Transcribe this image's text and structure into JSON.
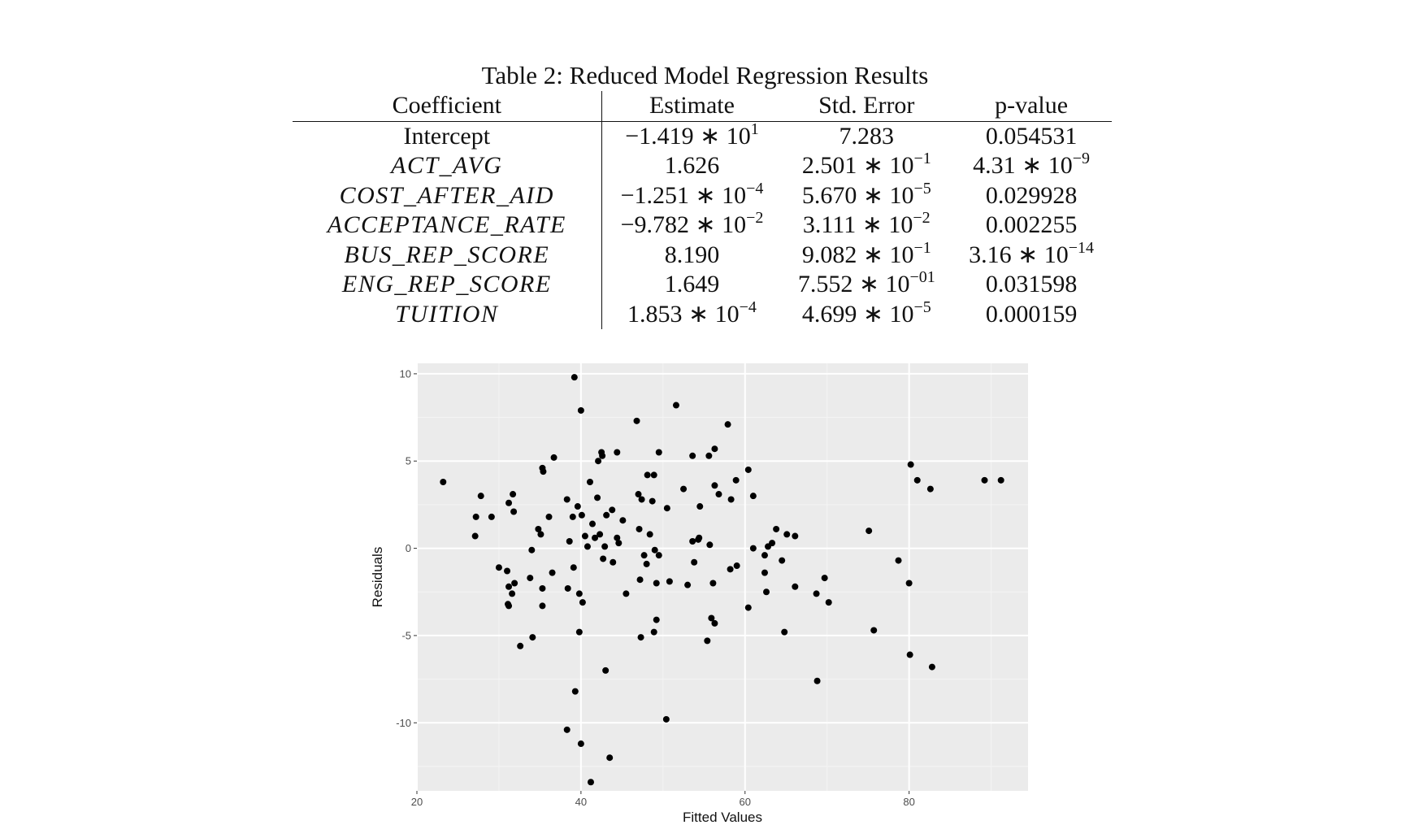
{
  "caption": "Table 2: Reduced Model Regression Results",
  "table": {
    "headers": [
      "Coefficient",
      "Estimate",
      "Std. Error",
      "p-value"
    ],
    "rows": [
      {
        "name": "Intercept",
        "italic": false,
        "estimate": {
          "m": "−1.419 ∗ 10",
          "e": "1"
        },
        "stderr": {
          "m": "7.283",
          "e": ""
        },
        "pvalue": {
          "m": "0.054531",
          "e": ""
        }
      },
      {
        "name": "ACT_AVG",
        "italic": true,
        "estimate": {
          "m": "1.626",
          "e": ""
        },
        "stderr": {
          "m": "2.501 ∗ 10",
          "e": "−1"
        },
        "pvalue": {
          "m": "4.31 ∗ 10",
          "e": "−9"
        }
      },
      {
        "name": "COST_AFTER_AID",
        "italic": true,
        "estimate": {
          "m": "−1.251 ∗ 10",
          "e": "−4"
        },
        "stderr": {
          "m": "5.670 ∗ 10",
          "e": "−5"
        },
        "pvalue": {
          "m": "0.029928",
          "e": ""
        }
      },
      {
        "name": "ACCEPTANCE_RATE",
        "italic": true,
        "estimate": {
          "m": "−9.782 ∗ 10",
          "e": "−2"
        },
        "stderr": {
          "m": "3.111 ∗ 10",
          "e": "−2"
        },
        "pvalue": {
          "m": "0.002255",
          "e": ""
        }
      },
      {
        "name": "BUS_REP_SCORE",
        "italic": true,
        "estimate": {
          "m": "8.190",
          "e": ""
        },
        "stderr": {
          "m": "9.082 ∗ 10",
          "e": "−1"
        },
        "pvalue": {
          "m": "3.16 ∗ 10",
          "e": "−14"
        }
      },
      {
        "name": "ENG_REP_SCORE",
        "italic": true,
        "estimate": {
          "m": "1.649",
          "e": ""
        },
        "stderr": {
          "m": "7.552 ∗ 10",
          "e": "−01"
        },
        "pvalue": {
          "m": "0.031598",
          "e": ""
        }
      },
      {
        "name": "TUITION",
        "italic": true,
        "estimate": {
          "m": "1.853 ∗ 10",
          "e": "−4"
        },
        "stderr": {
          "m": "4.699 ∗ 10",
          "e": "−5"
        },
        "pvalue": {
          "m": "0.000159",
          "e": ""
        }
      }
    ]
  },
  "chart_data": {
    "type": "scatter",
    "xlabel": "Fitted Values",
    "ylabel": "Residuals",
    "xlim": [
      20,
      94.5
    ],
    "ylim": [
      -13.9,
      10.6
    ],
    "xticks": [
      20,
      40,
      60,
      80
    ],
    "yticks": [
      -10,
      -5,
      0,
      5,
      10
    ],
    "grid": true,
    "background": "#ebebeb",
    "point_color": "#000000",
    "points": [
      [
        23.2,
        3.8
      ],
      [
        27.2,
        1.8
      ],
      [
        27.1,
        0.7
      ],
      [
        27.8,
        3.0
      ],
      [
        29.1,
        1.8
      ],
      [
        30.0,
        -1.1
      ],
      [
        31.2,
        2.6
      ],
      [
        31.7,
        3.1
      ],
      [
        31.8,
        2.1
      ],
      [
        31.0,
        -1.3
      ],
      [
        31.2,
        -2.2
      ],
      [
        31.6,
        -2.6
      ],
      [
        31.9,
        -2.0
      ],
      [
        31.1,
        -3.2
      ],
      [
        31.2,
        -3.3
      ],
      [
        32.6,
        -5.6
      ],
      [
        33.8,
        -1.7
      ],
      [
        34.0,
        -0.1
      ],
      [
        34.1,
        -5.1
      ],
      [
        34.8,
        1.1
      ],
      [
        35.1,
        0.8
      ],
      [
        35.3,
        4.6
      ],
      [
        35.4,
        4.4
      ],
      [
        35.3,
        -2.3
      ],
      [
        35.3,
        -3.3
      ],
      [
        36.1,
        1.8
      ],
      [
        36.5,
        -1.4
      ],
      [
        36.7,
        5.2
      ],
      [
        38.3,
        2.8
      ],
      [
        38.6,
        0.4
      ],
      [
        38.4,
        -2.3
      ],
      [
        39.0,
        1.8
      ],
      [
        39.1,
        -1.1
      ],
      [
        39.6,
        2.4
      ],
      [
        39.2,
        9.8
      ],
      [
        40.0,
        7.9
      ],
      [
        39.8,
        -2.6
      ],
      [
        40.1,
        1.9
      ],
      [
        40.2,
        -3.1
      ],
      [
        40.5,
        0.7
      ],
      [
        40.8,
        0.1
      ],
      [
        41.1,
        3.8
      ],
      [
        41.4,
        1.4
      ],
      [
        41.7,
        0.6
      ],
      [
        42.0,
        2.9
      ],
      [
        42.3,
        0.8
      ],
      [
        42.1,
        5.0
      ],
      [
        42.5,
        5.5
      ],
      [
        42.6,
        5.3
      ],
      [
        42.7,
        -0.6
      ],
      [
        42.9,
        0.1
      ],
      [
        43.1,
        1.9
      ],
      [
        43.8,
        2.2
      ],
      [
        43.9,
        -0.8
      ],
      [
        44.4,
        0.6
      ],
      [
        44.6,
        0.3
      ],
      [
        44.4,
        5.5
      ],
      [
        45.1,
        1.6
      ],
      [
        45.5,
        -2.6
      ],
      [
        46.8,
        7.3
      ],
      [
        47.0,
        3.1
      ],
      [
        47.1,
        1.1
      ],
      [
        47.2,
        -1.8
      ],
      [
        47.4,
        2.8
      ],
      [
        47.7,
        -0.4
      ],
      [
        48.0,
        -0.9
      ],
      [
        48.1,
        4.2
      ],
      [
        48.4,
        0.8
      ],
      [
        48.7,
        2.7
      ],
      [
        48.9,
        4.2
      ],
      [
        49.0,
        -0.1
      ],
      [
        49.2,
        -2.0
      ],
      [
        49.5,
        -0.4
      ],
      [
        49.5,
        5.5
      ],
      [
        48.9,
        -4.8
      ],
      [
        49.2,
        -4.1
      ],
      [
        47.3,
        -5.1
      ],
      [
        50.5,
        2.3
      ],
      [
        50.8,
        -1.9
      ],
      [
        51.6,
        8.2
      ],
      [
        52.5,
        3.4
      ],
      [
        53.0,
        -2.1
      ],
      [
        53.6,
        0.4
      ],
      [
        53.8,
        -0.8
      ],
      [
        53.6,
        5.3
      ],
      [
        54.3,
        0.5
      ],
      [
        54.4,
        0.6
      ],
      [
        54.5,
        2.4
      ],
      [
        55.4,
        -5.3
      ],
      [
        55.7,
        0.2
      ],
      [
        55.6,
        5.3
      ],
      [
        56.3,
        5.7
      ],
      [
        56.3,
        3.6
      ],
      [
        56.8,
        3.1
      ],
      [
        56.1,
        -2.0
      ],
      [
        55.9,
        -4.0
      ],
      [
        56.3,
        -4.3
      ],
      [
        57.9,
        7.1
      ],
      [
        58.2,
        -1.2
      ],
      [
        58.3,
        2.8
      ],
      [
        58.9,
        3.9
      ],
      [
        59.0,
        -1.0
      ],
      [
        60.4,
        4.5
      ],
      [
        60.4,
        -3.4
      ],
      [
        61.0,
        0.0
      ],
      [
        61.0,
        3.0
      ],
      [
        62.4,
        -0.4
      ],
      [
        62.4,
        -1.4
      ],
      [
        62.6,
        -2.5
      ],
      [
        62.8,
        0.1
      ],
      [
        63.3,
        0.3
      ],
      [
        63.8,
        1.1
      ],
      [
        64.5,
        -0.7
      ],
      [
        64.8,
        -4.8
      ],
      [
        65.1,
        0.8
      ],
      [
        66.1,
        0.7
      ],
      [
        66.1,
        -2.2
      ],
      [
        68.7,
        -2.6
      ],
      [
        68.8,
        -7.6
      ],
      [
        69.7,
        -1.7
      ],
      [
        70.2,
        -3.1
      ],
      [
        75.1,
        1.0
      ],
      [
        75.7,
        -4.7
      ],
      [
        78.7,
        -0.7
      ],
      [
        80.0,
        -2.0
      ],
      [
        80.1,
        -6.1
      ],
      [
        80.2,
        4.8
      ],
      [
        81.0,
        3.9
      ],
      [
        82.6,
        3.4
      ],
      [
        82.8,
        -6.8
      ],
      [
        89.2,
        3.9
      ],
      [
        91.2,
        3.9
      ],
      [
        39.3,
        -8.2
      ],
      [
        38.3,
        -10.4
      ],
      [
        40.0,
        -11.2
      ],
      [
        43.5,
        -12.0
      ],
      [
        41.2,
        -13.4
      ],
      [
        43.0,
        -7.0
      ],
      [
        50.4,
        -9.8
      ],
      [
        39.8,
        -4.8
      ]
    ]
  }
}
